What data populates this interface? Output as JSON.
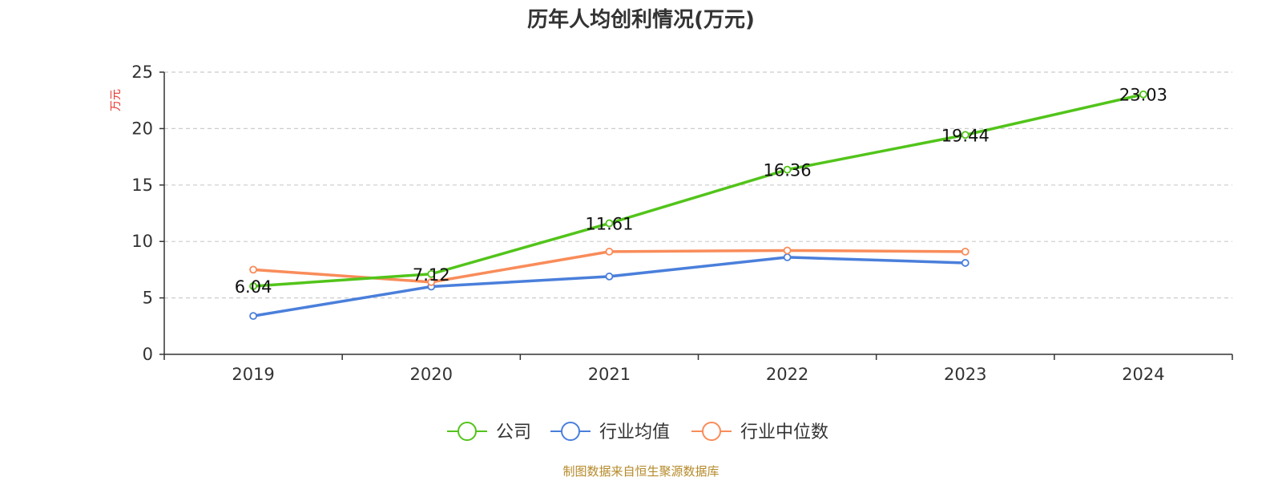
{
  "chart_data": {
    "type": "line",
    "title": "历年人均创利情况(万元)",
    "ylabel": "万元",
    "xlabel": "",
    "categories": [
      "2019",
      "2020",
      "2021",
      "2022",
      "2023",
      "2024"
    ],
    "ylim": [
      0,
      25
    ],
    "yticks": [
      "0",
      "5",
      "10",
      "15",
      "20",
      "25"
    ],
    "grid": true,
    "legend_position": "bottom",
    "series": [
      {
        "name": "公司",
        "color": "#52c41a",
        "values": [
          6.04,
          7.12,
          11.61,
          16.36,
          19.44,
          23.03
        ],
        "labels": [
          "6.04",
          "7.12",
          "11.61",
          "16.36",
          "19.44",
          "23.03"
        ]
      },
      {
        "name": "行业均值",
        "color": "#4a7fdb",
        "values": [
          3.4,
          6.0,
          6.9,
          8.6,
          8.1,
          null
        ],
        "labels": null
      },
      {
        "name": "行业中位数",
        "color": "#f98c5a",
        "values": [
          7.5,
          6.4,
          9.1,
          9.2,
          9.1,
          null
        ],
        "labels": null
      }
    ],
    "source": "制图数据来自恒生聚源数据库"
  }
}
